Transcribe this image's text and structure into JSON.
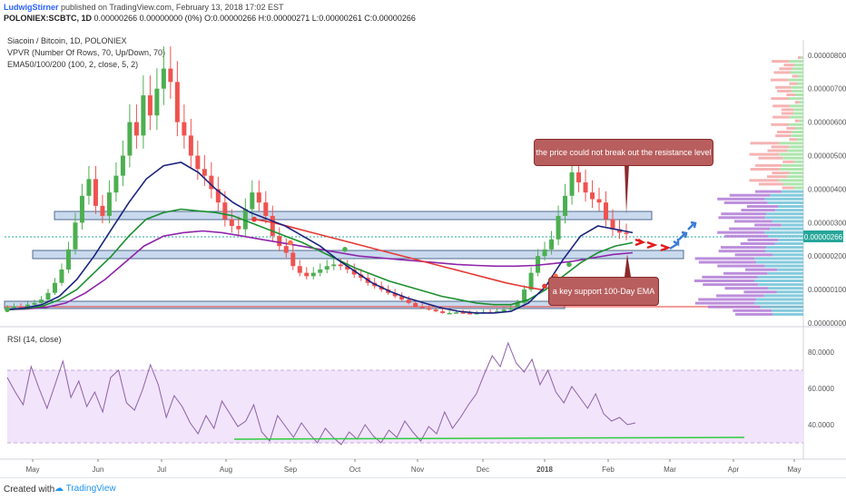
{
  "header": {
    "author": "LudwigStirner",
    "published": "published on TradingView.com, February 13, 2018 17:02 EST",
    "symbol": "POLONIEX:SCBTC, 1D",
    "ohlc": "0.00000266 0.00000000 (0%) O:0.00000266 H:0.00000271 L:0.00000261 C:0.00000266"
  },
  "legend": {
    "title": "Siacoin / Bitcoin, 1D, POLONIEX",
    "vpvr": "VPVR (Number Of Rows, 70, Up/Down, 70)",
    "ema": "EMA50/100/200 (100, 2, close, 5, 2)",
    "rsi": "RSI (14, close)"
  },
  "annotations": {
    "resistance": "the price could not break out the resistance level",
    "support": "a key support 100-Day EMA"
  },
  "footer": {
    "created": "Created with",
    "brand": "TradingView"
  },
  "colors": {
    "ema50": "#1a237e",
    "ema100": "#1b8f2e",
    "ema200": "#e53935",
    "ema_purple": "#8e24aa",
    "rsi": "#8e5fa8",
    "rsi_band": "#f1e4fb",
    "up": "#4caf50",
    "down": "#ef5350",
    "zone": "#c9d9ee"
  },
  "chart_data": {
    "type": "candlestick",
    "x_ticks": [
      "May",
      "Jun",
      "Jul",
      "Aug",
      "Sep",
      "Oct",
      "Nov",
      "Dec",
      "2018",
      "Feb",
      "Mar",
      "Apr",
      "May"
    ],
    "price_axis": {
      "ticks": [
        "0.00000800",
        "0.00000700",
        "0.00000600",
        "0.00000500",
        "0.00000400",
        "0.00000300",
        "0.00000200",
        "0.00000100",
        "0.00000000"
      ],
      "last_price": "0.00000266",
      "range": [
        0.0,
        8.3e-06
      ]
    },
    "rsi_axis": {
      "ticks": [
        "80.0000",
        "60.0000",
        "40.0000"
      ],
      "range": [
        20,
        90
      ],
      "band": [
        30,
        70
      ]
    },
    "close_series": [
      0.45,
      0.5,
      0.48,
      0.55,
      0.6,
      0.7,
      0.9,
      1.2,
      1.6,
      2.2,
      3.0,
      3.8,
      4.3,
      3.5,
      3.2,
      3.9,
      4.4,
      5.0,
      6.0,
      5.6,
      6.8,
      6.2,
      7.0,
      7.6,
      7.2,
      6.0,
      5.6,
      5.0,
      4.6,
      4.4,
      4.0,
      3.6,
      3.1,
      2.9,
      2.8,
      3.4,
      3.9,
      3.6,
      3.2,
      2.6,
      2.3,
      2.1,
      1.7,
      1.5,
      1.4,
      1.5,
      1.6,
      1.7,
      1.75,
      1.7,
      1.6,
      1.45,
      1.35,
      1.2,
      1.1,
      1.0,
      0.9,
      0.8,
      0.7,
      0.6,
      0.5,
      0.45,
      0.4,
      0.35,
      0.3,
      0.3,
      0.32,
      0.3,
      0.28,
      0.3,
      0.33,
      0.32,
      0.35,
      0.4,
      0.45,
      0.6,
      1.0,
      1.5,
      2.0,
      2.2,
      2.5,
      3.2,
      3.8,
      4.5,
      4.2,
      3.9,
      3.7,
      3.6,
      3.1,
      2.8,
      2.7,
      2.66
    ],
    "ema50": [
      0.4,
      0.45,
      0.55,
      0.8,
      1.3,
      2.0,
      2.8,
      3.6,
      4.3,
      4.7,
      4.8,
      4.5,
      4.0,
      3.6,
      3.3,
      3.1,
      2.9,
      2.6,
      2.3,
      1.9,
      1.55,
      1.2,
      0.95,
      0.75,
      0.6,
      0.45,
      0.35,
      0.3,
      0.3,
      0.35,
      0.6,
      1.1,
      1.9,
      2.6,
      2.9,
      2.8,
      2.7
    ],
    "ema100": [
      0.4,
      0.43,
      0.5,
      0.7,
      1.0,
      1.5,
      2.0,
      2.6,
      3.1,
      3.3,
      3.4,
      3.35,
      3.3,
      3.2,
      3.0,
      2.8,
      2.6,
      2.4,
      2.15,
      1.9,
      1.65,
      1.45,
      1.25,
      1.1,
      0.95,
      0.8,
      0.7,
      0.6,
      0.55,
      0.55,
      0.7,
      1.0,
      1.4,
      1.8,
      2.1,
      2.3,
      2.4
    ],
    "ema200": [
      3.1,
      3.0,
      2.85,
      2.7,
      2.55,
      2.4,
      2.25,
      2.1,
      1.95,
      1.8,
      1.65,
      1.5,
      1.35,
      1.2,
      1.08,
      0.98
    ],
    "ema_purple": [
      0.4,
      0.42,
      0.47,
      0.6,
      0.9,
      1.3,
      1.8,
      2.3,
      2.6,
      2.7,
      2.75,
      2.7,
      2.6,
      2.5,
      2.4,
      2.3,
      2.2,
      2.1,
      2.0,
      1.95,
      1.9,
      1.85,
      1.8,
      1.75,
      1.72,
      1.7,
      1.7,
      1.72,
      1.78,
      1.85,
      1.95,
      2.05,
      2.1
    ],
    "rsi_series": [
      66,
      58,
      51,
      72,
      60,
      49,
      62,
      75,
      55,
      64,
      50,
      58,
      47,
      66,
      70,
      52,
      48,
      59,
      73,
      62,
      44,
      56,
      50,
      41,
      35,
      45,
      38,
      53,
      46,
      39,
      42,
      51,
      36,
      31,
      45,
      39,
      33,
      41,
      35,
      30,
      38,
      33,
      29,
      36,
      32,
      40,
      34,
      30,
      37,
      33,
      42,
      36,
      31,
      39,
      35,
      47,
      38,
      44,
      51,
      57,
      68,
      78,
      72,
      85,
      74,
      69,
      76,
      62,
      70,
      58,
      52,
      61,
      55,
      49,
      57,
      46,
      42,
      44,
      40,
      41
    ]
  }
}
